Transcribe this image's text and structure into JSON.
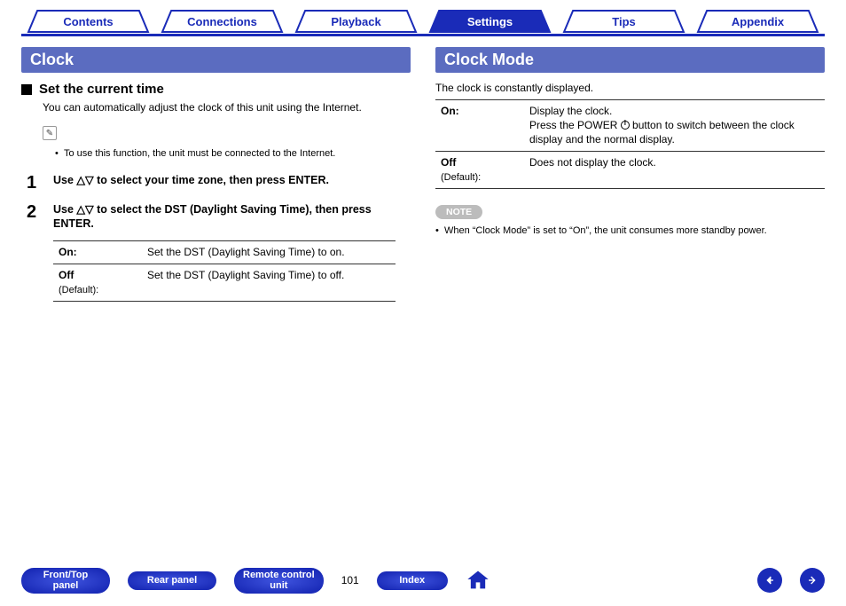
{
  "colors": {
    "brand_blue": "#1a2bb8",
    "header_fill": "#5b6cc0",
    "note_pill": "#bcbcbc",
    "text": "#000000",
    "bg": "#ffffff"
  },
  "top_tabs": [
    {
      "label": "Contents",
      "active": false
    },
    {
      "label": "Connections",
      "active": false
    },
    {
      "label": "Playback",
      "active": false
    },
    {
      "label": "Settings",
      "active": true
    },
    {
      "label": "Tips",
      "active": false
    },
    {
      "label": "Appendix",
      "active": false
    }
  ],
  "left": {
    "header": "Clock",
    "subhead": "Set the current time",
    "intro": "You can automatically adjust the clock of this unit using the Internet.",
    "pencil_note": "To use this function, the unit must be connected to the Internet.",
    "steps": [
      {
        "num": "1",
        "text_a": "Use ",
        "text_b": " to select your time zone, then press ENTER."
      },
      {
        "num": "2",
        "text_a": "Use ",
        "text_b": " to select the DST (Daylight Saving Time), then press ENTER."
      }
    ],
    "dst_rows": [
      {
        "label": "On:",
        "sub": "",
        "desc": "Set the DST (Daylight Saving Time) to on."
      },
      {
        "label": "Off",
        "sub": "(Default):",
        "desc": "Set the DST (Daylight Saving Time) to off."
      }
    ]
  },
  "right": {
    "header": "Clock Mode",
    "intro": "The clock is constantly displayed.",
    "mode_rows": [
      {
        "label": "On:",
        "sub": "",
        "desc_a": "Display the clock.",
        "desc_b": "Press the POWER ",
        "desc_c": " button to switch between the clock display and the normal display."
      },
      {
        "label": "Off",
        "sub": "(Default):",
        "desc_a": "Does not display the clock.",
        "desc_b": "",
        "desc_c": ""
      }
    ],
    "note_label": "NOTE",
    "note_text": "When “Clock Mode” is set to “On”, the unit consumes more standby power."
  },
  "bottom": {
    "buttons": [
      "Front/Top\npanel",
      "Rear panel",
      "Remote control\nunit"
    ],
    "page": "101",
    "index_label": "Index"
  }
}
